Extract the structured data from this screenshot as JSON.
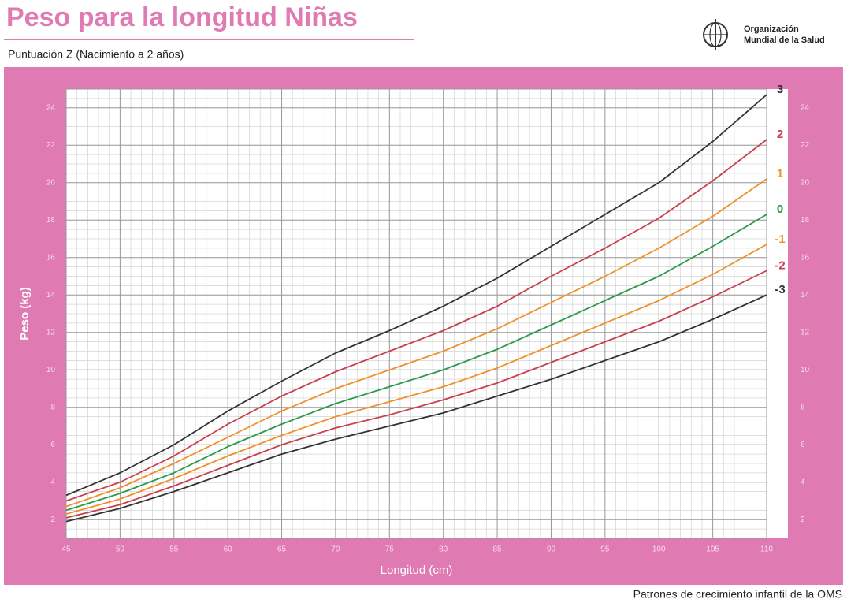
{
  "logo_text": [
    "Organización",
    "Mundial de la Salud"
  ],
  "source": "Patrones de crecimiento infantil de la OMS",
  "chart_data": {
    "type": "line",
    "title": "Peso para la longitud Niñas",
    "subtitle": "Puntuación Z  (Nacimiento a 2 años)",
    "xlabel": "Longitud (cm)",
    "ylabel": "Peso (kg)",
    "x": [
      45,
      50,
      55,
      60,
      65,
      70,
      75,
      80,
      85,
      90,
      95,
      100,
      105,
      110
    ],
    "xlim": [
      45,
      110
    ],
    "ylim": [
      1,
      25
    ],
    "xticks": [
      45,
      50,
      55,
      60,
      65,
      70,
      75,
      80,
      85,
      90,
      95,
      100,
      105,
      110
    ],
    "yticks": [
      2,
      4,
      6,
      8,
      10,
      12,
      14,
      16,
      18,
      20,
      22,
      24
    ],
    "grid": true,
    "series": [
      {
        "name": "3",
        "color": "#333333",
        "values": [
          3.3,
          4.5,
          6.0,
          7.8,
          9.4,
          10.9,
          12.1,
          13.4,
          14.9,
          16.6,
          18.3,
          20.0,
          22.2,
          24.7
        ]
      },
      {
        "name": "2",
        "color": "#c8404e",
        "values": [
          3.0,
          4.0,
          5.4,
          7.1,
          8.6,
          9.9,
          11.0,
          12.1,
          13.4,
          15.0,
          16.5,
          18.1,
          20.1,
          22.3
        ]
      },
      {
        "name": "1",
        "color": "#f0902a",
        "values": [
          2.7,
          3.7,
          5.0,
          6.4,
          7.8,
          9.0,
          10.0,
          11.0,
          12.2,
          13.6,
          15.0,
          16.5,
          18.2,
          20.2
        ]
      },
      {
        "name": "0",
        "color": "#2a9a4a",
        "values": [
          2.5,
          3.4,
          4.5,
          5.9,
          7.1,
          8.2,
          9.1,
          10.0,
          11.1,
          12.4,
          13.7,
          15.0,
          16.6,
          18.3
        ]
      },
      {
        "name": "-1",
        "color": "#f0902a",
        "values": [
          2.3,
          3.1,
          4.2,
          5.4,
          6.5,
          7.5,
          8.3,
          9.1,
          10.1,
          11.3,
          12.5,
          13.7,
          15.1,
          16.7
        ]
      },
      {
        "name": "-2",
        "color": "#c8404e",
        "values": [
          2.1,
          2.8,
          3.8,
          4.9,
          6.0,
          6.9,
          7.6,
          8.4,
          9.3,
          10.4,
          11.5,
          12.6,
          13.9,
          15.3
        ]
      },
      {
        "name": "-3",
        "color": "#333333",
        "values": [
          1.9,
          2.6,
          3.5,
          4.5,
          5.5,
          6.3,
          7.0,
          7.7,
          8.6,
          9.5,
          10.5,
          11.5,
          12.7,
          14.0
        ]
      }
    ]
  }
}
